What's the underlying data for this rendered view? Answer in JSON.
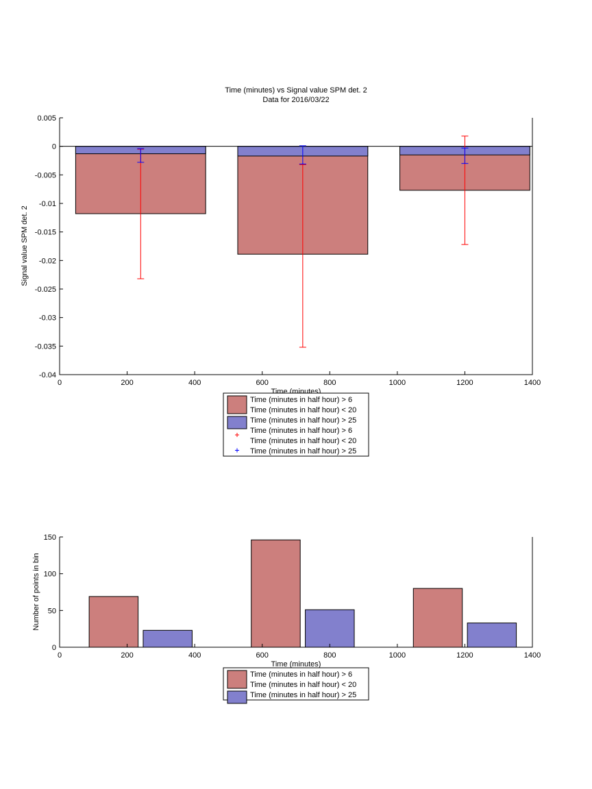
{
  "colors": {
    "series1": "#cc7f7d",
    "series2": "#8280cd",
    "err1": "#ff0000",
    "err2": "#0000ff"
  },
  "chart_data": [
    {
      "type": "bar",
      "title": "Time (minutes) vs Signal value SPM det. 2",
      "subtitle": "Data for 2016/03/22",
      "xlabel": "Time (minutes)",
      "ylabel": "Signal value SPM det. 2",
      "xlim": [
        0,
        1400
      ],
      "ylim": [
        -0.04,
        0.005
      ],
      "xticks": [
        0,
        200,
        400,
        600,
        800,
        1000,
        1200,
        1400
      ],
      "xtick_labels": [
        "0",
        "200",
        "400",
        "600",
        "800",
        "1000",
        "1200",
        "1400"
      ],
      "yticks": [
        0.005,
        0,
        -0.005,
        -0.01,
        -0.015,
        -0.02,
        -0.025,
        -0.03,
        -0.035,
        -0.04
      ],
      "ytick_labels": [
        "0.005",
        "0",
        "-0.005",
        "-0.01",
        "-0.015",
        "-0.02",
        "-0.025",
        "-0.03",
        "-0.035",
        "-0.04"
      ],
      "x": [
        240,
        720,
        1200
      ],
      "bar_span": 385,
      "series": [
        {
          "values": [
            -0.0118,
            -0.0189,
            -0.0077
          ],
          "err_low": [
            -0.0232,
            -0.0352,
            -0.0172
          ],
          "err_high": [
            -0.0005,
            -0.0032,
            0.0018
          ]
        },
        {
          "values": [
            -0.0013,
            -0.0017,
            -0.0015
          ],
          "err_low": [
            -0.0028,
            -0.0031,
            -0.003
          ],
          "err_high": [
            -0.0004,
            0.0001,
            -0.0003
          ]
        }
      ],
      "legend": {
        "position": "below",
        "entries": [
          {
            "kind": "bar",
            "lines": [
              "Time (minutes in half hour) > 6",
              "Time (minutes in half hour) < 20"
            ]
          },
          {
            "kind": "bar",
            "lines": [
              "Time (minutes in half hour) > 25"
            ]
          },
          {
            "kind": "marker",
            "lines": [
              "Time (minutes in half hour) > 6",
              "Time (minutes in half hour) < 20"
            ]
          },
          {
            "kind": "marker",
            "lines": [
              "Time (minutes in half hour) > 25"
            ]
          }
        ]
      }
    },
    {
      "type": "bar",
      "title": "",
      "xlabel": "Time (minutes)",
      "ylabel": "Number of points in bin",
      "xlim": [
        0,
        1400
      ],
      "ylim": [
        0,
        150
      ],
      "xticks": [
        0,
        200,
        400,
        600,
        800,
        1000,
        1200,
        1400
      ],
      "xtick_labels": [
        "0",
        "200",
        "400",
        "600",
        "800",
        "1000",
        "1200",
        "1400"
      ],
      "yticks": [
        0,
        50,
        100,
        150
      ],
      "ytick_labels": [
        "0",
        "50",
        "100",
        "150"
      ],
      "bar_span": 145,
      "series": [
        {
          "x": [
            160,
            640,
            1120
          ],
          "values": [
            69,
            146,
            80
          ]
        },
        {
          "x": [
            320,
            800,
            1280
          ],
          "values": [
            23,
            51,
            33
          ]
        }
      ],
      "legend": {
        "position": "below",
        "entries": [
          {
            "kind": "bar",
            "lines": [
              "Time (minutes in half hour) > 6",
              "Time (minutes in half hour) < 20"
            ]
          },
          {
            "kind": "bar",
            "lines": [
              "Time (minutes in half hour) > 25"
            ]
          }
        ]
      }
    }
  ]
}
